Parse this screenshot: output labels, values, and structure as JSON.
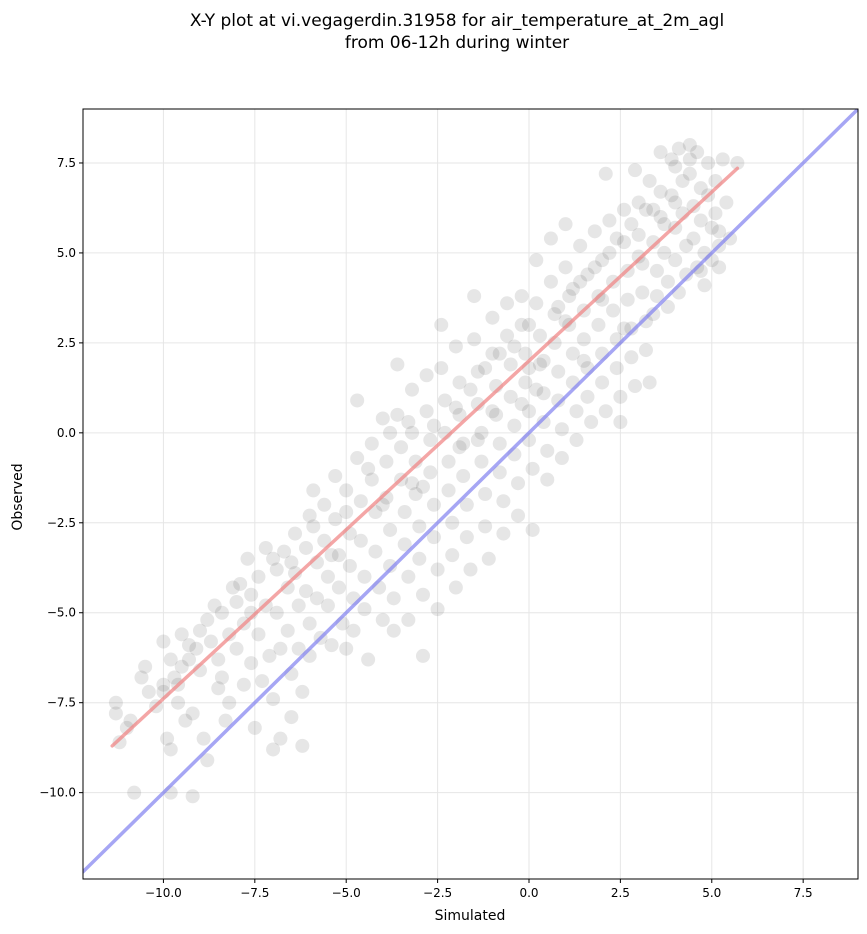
{
  "chart_data": {
    "type": "scatter",
    "title": [
      "X-Y plot at vi.vegagerdin.31958 for air_temperature_at_2m_agl",
      "from 06-12h during winter"
    ],
    "xlabel": "Simulated",
    "ylabel": "Observed",
    "xlim": [
      -12.2,
      9.0
    ],
    "ylim": [
      -12.4,
      9.0
    ],
    "xticks": [
      -10.0,
      -7.5,
      -5.0,
      -2.5,
      0.0,
      2.5,
      5.0,
      7.5
    ],
    "yticks": [
      -10.0,
      -7.5,
      -5.0,
      -2.5,
      0.0,
      2.5,
      5.0,
      7.5
    ],
    "xtick_labels": [
      "−10.0",
      "−7.5",
      "−5.0",
      "−2.5",
      "0.0",
      "2.5",
      "5.0",
      "7.5"
    ],
    "ytick_labels": [
      "−10.0",
      "−7.5",
      "−5.0",
      "−2.5",
      "0.0",
      "2.5",
      "5.0",
      "7.5"
    ],
    "grid": true,
    "point_color": "#333333",
    "point_opacity": 0.12,
    "points": [
      [
        -11.3,
        -7.5
      ],
      [
        -11.3,
        -7.8
      ],
      [
        -11.0,
        -8.2
      ],
      [
        -10.8,
        -10.0
      ],
      [
        -10.6,
        -6.8
      ],
      [
        -10.5,
        -6.5
      ],
      [
        -10.4,
        -7.2
      ],
      [
        -10.2,
        -7.6
      ],
      [
        -10.0,
        -5.8
      ],
      [
        -10.0,
        -7.0
      ],
      [
        -10.0,
        -7.2
      ],
      [
        -9.9,
        -8.5
      ],
      [
        -9.8,
        -6.3
      ],
      [
        -9.8,
        -8.8
      ],
      [
        -9.8,
        -10.0
      ],
      [
        -9.7,
        -6.8
      ],
      [
        -9.6,
        -7.5
      ],
      [
        -9.5,
        -5.6
      ],
      [
        -9.5,
        -6.5
      ],
      [
        -9.4,
        -8.0
      ],
      [
        -9.3,
        -5.9
      ],
      [
        -9.3,
        -6.3
      ],
      [
        -9.2,
        -7.8
      ],
      [
        -9.2,
        -10.1
      ],
      [
        -9.1,
        -6.0
      ],
      [
        -9.0,
        -5.5
      ],
      [
        -9.0,
        -6.6
      ],
      [
        -8.9,
        -8.5
      ],
      [
        -8.8,
        -9.1
      ],
      [
        -8.7,
        -5.8
      ],
      [
        -8.6,
        -4.8
      ],
      [
        -8.5,
        -6.3
      ],
      [
        -8.5,
        -7.1
      ],
      [
        -8.4,
        -5.0
      ],
      [
        -8.4,
        -6.8
      ],
      [
        -8.3,
        -8.0
      ],
      [
        -8.2,
        -5.6
      ],
      [
        -8.2,
        -7.5
      ],
      [
        -8.0,
        -4.7
      ],
      [
        -8.0,
        -6.0
      ],
      [
        -7.9,
        -4.2
      ],
      [
        -7.8,
        -5.3
      ],
      [
        -7.8,
        -7.0
      ],
      [
        -7.7,
        -3.5
      ],
      [
        -7.6,
        -4.5
      ],
      [
        -7.6,
        -6.4
      ],
      [
        -7.5,
        -8.2
      ],
      [
        -7.4,
        -4.0
      ],
      [
        -7.4,
        -5.6
      ],
      [
        -7.3,
        -6.9
      ],
      [
        -7.2,
        -3.2
      ],
      [
        -7.2,
        -4.8
      ],
      [
        -7.1,
        -6.2
      ],
      [
        -7.0,
        -7.4
      ],
      [
        -7.0,
        -8.8
      ],
      [
        -6.9,
        -3.8
      ],
      [
        -6.9,
        -5.0
      ],
      [
        -6.8,
        -6.0
      ],
      [
        -6.8,
        -8.5
      ],
      [
        -6.7,
        -3.3
      ],
      [
        -6.6,
        -4.3
      ],
      [
        -6.6,
        -5.5
      ],
      [
        -6.5,
        -6.7
      ],
      [
        -6.5,
        -7.9
      ],
      [
        -6.4,
        -2.8
      ],
      [
        -6.4,
        -3.9
      ],
      [
        -6.3,
        -4.8
      ],
      [
        -6.3,
        -6.0
      ],
      [
        -6.2,
        -7.2
      ],
      [
        -6.2,
        -8.7
      ],
      [
        -6.1,
        -3.2
      ],
      [
        -6.1,
        -4.4
      ],
      [
        -6.0,
        -5.3
      ],
      [
        -6.0,
        -6.2
      ],
      [
        -5.9,
        -1.6
      ],
      [
        -5.9,
        -2.6
      ],
      [
        -5.8,
        -3.6
      ],
      [
        -5.8,
        -4.6
      ],
      [
        -5.7,
        -5.7
      ],
      [
        -5.6,
        -2.0
      ],
      [
        -5.6,
        -3.0
      ],
      [
        -5.5,
        -4.0
      ],
      [
        -5.5,
        -4.8
      ],
      [
        -5.4,
        -5.9
      ],
      [
        -5.3,
        -1.2
      ],
      [
        -5.3,
        -2.4
      ],
      [
        -5.2,
        -3.4
      ],
      [
        -5.2,
        -4.3
      ],
      [
        -5.1,
        -5.3
      ],
      [
        -5.0,
        -6.0
      ],
      [
        -5.0,
        -1.6
      ],
      [
        -4.9,
        -2.8
      ],
      [
        -4.9,
        -3.7
      ],
      [
        -4.8,
        -4.6
      ],
      [
        -4.8,
        -5.5
      ],
      [
        -4.7,
        0.9
      ],
      [
        -4.7,
        -0.7
      ],
      [
        -4.6,
        -1.9
      ],
      [
        -4.6,
        -3.0
      ],
      [
        -4.5,
        -4.0
      ],
      [
        -4.5,
        -4.9
      ],
      [
        -4.4,
        -6.3
      ],
      [
        -4.3,
        -0.3
      ],
      [
        -4.3,
        -1.3
      ],
      [
        -4.2,
        -2.2
      ],
      [
        -4.2,
        -3.3
      ],
      [
        -4.1,
        -4.3
      ],
      [
        -4.0,
        -5.2
      ],
      [
        -4.0,
        0.4
      ],
      [
        -3.9,
        -0.8
      ],
      [
        -3.9,
        -1.8
      ],
      [
        -3.8,
        -2.7
      ],
      [
        -3.8,
        -3.7
      ],
      [
        -3.7,
        -4.6
      ],
      [
        -3.7,
        -5.5
      ],
      [
        -3.6,
        1.9
      ],
      [
        -3.6,
        0.5
      ],
      [
        -3.5,
        -0.4
      ],
      [
        -3.5,
        -1.3
      ],
      [
        -3.4,
        -2.2
      ],
      [
        -3.4,
        -3.1
      ],
      [
        -3.3,
        -4.0
      ],
      [
        -3.3,
        -5.2
      ],
      [
        -3.2,
        1.2
      ],
      [
        -3.2,
        0.0
      ],
      [
        -3.1,
        -0.8
      ],
      [
        -3.1,
        -1.7
      ],
      [
        -3.0,
        -2.6
      ],
      [
        -3.0,
        -3.5
      ],
      [
        -2.9,
        -4.5
      ],
      [
        -2.9,
        -6.2
      ],
      [
        -2.8,
        1.6
      ],
      [
        -2.8,
        0.6
      ],
      [
        -2.7,
        -0.2
      ],
      [
        -2.7,
        -1.1
      ],
      [
        -2.6,
        -2.0
      ],
      [
        -2.6,
        -2.9
      ],
      [
        -2.5,
        -3.8
      ],
      [
        -2.5,
        -4.9
      ],
      [
        -2.4,
        3.0
      ],
      [
        -2.4,
        1.8
      ],
      [
        -2.3,
        0.9
      ],
      [
        -2.3,
        0.0
      ],
      [
        -2.2,
        -0.8
      ],
      [
        -2.2,
        -1.6
      ],
      [
        -2.1,
        -2.5
      ],
      [
        -2.1,
        -3.4
      ],
      [
        -2.0,
        -4.3
      ],
      [
        -2.0,
        2.4
      ],
      [
        -1.9,
        1.4
      ],
      [
        -1.9,
        0.5
      ],
      [
        -1.8,
        -0.3
      ],
      [
        -1.8,
        -1.2
      ],
      [
        -1.7,
        -2.0
      ],
      [
        -1.7,
        -2.9
      ],
      [
        -1.6,
        -3.8
      ],
      [
        -1.5,
        3.8
      ],
      [
        -1.5,
        2.6
      ],
      [
        -1.4,
        1.7
      ],
      [
        -1.4,
        0.8
      ],
      [
        -1.3,
        0.0
      ],
      [
        -1.3,
        -0.8
      ],
      [
        -1.2,
        -1.7
      ],
      [
        -1.2,
        -2.6
      ],
      [
        -1.1,
        -3.5
      ],
      [
        -1.0,
        3.2
      ],
      [
        -1.0,
        2.2
      ],
      [
        -0.9,
        1.3
      ],
      [
        -0.9,
        0.5
      ],
      [
        -0.8,
        -0.3
      ],
      [
        -0.8,
        -1.1
      ],
      [
        -0.7,
        -1.9
      ],
      [
        -0.7,
        -2.8
      ],
      [
        -0.6,
        3.6
      ],
      [
        -0.6,
        2.7
      ],
      [
        -0.5,
        1.9
      ],
      [
        -0.5,
        1.0
      ],
      [
        -0.4,
        0.2
      ],
      [
        -0.4,
        -0.6
      ],
      [
        -0.3,
        -1.4
      ],
      [
        -0.3,
        -2.3
      ],
      [
        -0.2,
        3.8
      ],
      [
        -0.2,
        3.0
      ],
      [
        -0.1,
        2.2
      ],
      [
        -0.1,
        1.4
      ],
      [
        0.0,
        0.6
      ],
      [
        0.0,
        -0.2
      ],
      [
        0.1,
        -1.0
      ],
      [
        0.1,
        -2.7
      ],
      [
        0.2,
        4.8
      ],
      [
        0.2,
        3.6
      ],
      [
        0.3,
        2.7
      ],
      [
        0.3,
        1.9
      ],
      [
        0.4,
        1.1
      ],
      [
        0.4,
        0.3
      ],
      [
        0.5,
        -0.5
      ],
      [
        0.5,
        -1.3
      ],
      [
        0.6,
        5.4
      ],
      [
        0.6,
        4.2
      ],
      [
        0.7,
        3.3
      ],
      [
        0.7,
        2.5
      ],
      [
        0.8,
        1.7
      ],
      [
        0.8,
        0.9
      ],
      [
        0.9,
        0.1
      ],
      [
        0.9,
        -0.7
      ],
      [
        1.0,
        5.8
      ],
      [
        1.0,
        4.6
      ],
      [
        1.1,
        3.8
      ],
      [
        1.1,
        3.0
      ],
      [
        1.2,
        2.2
      ],
      [
        1.2,
        1.4
      ],
      [
        1.3,
        0.6
      ],
      [
        1.3,
        -0.2
      ],
      [
        1.4,
        5.2
      ],
      [
        1.4,
        4.2
      ],
      [
        1.5,
        3.4
      ],
      [
        1.5,
        2.6
      ],
      [
        1.6,
        1.8
      ],
      [
        1.6,
        1.0
      ],
      [
        1.7,
        0.3
      ],
      [
        1.8,
        5.6
      ],
      [
        1.8,
        4.6
      ],
      [
        1.9,
        3.8
      ],
      [
        1.9,
        3.0
      ],
      [
        2.0,
        2.2
      ],
      [
        2.0,
        1.4
      ],
      [
        2.1,
        0.6
      ],
      [
        2.1,
        7.2
      ],
      [
        2.2,
        5.9
      ],
      [
        2.2,
        5.0
      ],
      [
        2.3,
        4.2
      ],
      [
        2.3,
        3.4
      ],
      [
        2.4,
        2.6
      ],
      [
        2.4,
        1.8
      ],
      [
        2.5,
        1.0
      ],
      [
        2.5,
        0.3
      ],
      [
        2.6,
        6.2
      ],
      [
        2.6,
        5.3
      ],
      [
        2.7,
        4.5
      ],
      [
        2.7,
        3.7
      ],
      [
        2.8,
        2.9
      ],
      [
        2.8,
        2.1
      ],
      [
        2.9,
        1.3
      ],
      [
        2.9,
        7.3
      ],
      [
        3.0,
        6.4
      ],
      [
        3.0,
        5.5
      ],
      [
        3.1,
        4.7
      ],
      [
        3.1,
        3.9
      ],
      [
        3.2,
        3.1
      ],
      [
        3.2,
        2.3
      ],
      [
        3.3,
        1.4
      ],
      [
        3.3,
        7.0
      ],
      [
        3.4,
        6.2
      ],
      [
        3.4,
        5.3
      ],
      [
        3.5,
        4.5
      ],
      [
        3.5,
        3.8
      ],
      [
        3.6,
        7.8
      ],
      [
        3.6,
        6.7
      ],
      [
        3.7,
        5.8
      ],
      [
        3.7,
        5.0
      ],
      [
        3.8,
        4.2
      ],
      [
        3.8,
        3.5
      ],
      [
        3.9,
        7.6
      ],
      [
        3.9,
        6.6
      ],
      [
        4.0,
        5.7
      ],
      [
        4.0,
        4.8
      ],
      [
        4.1,
        3.9
      ],
      [
        4.1,
        7.9
      ],
      [
        4.2,
        7.0
      ],
      [
        4.2,
        6.1
      ],
      [
        4.3,
        5.2
      ],
      [
        4.3,
        4.4
      ],
      [
        4.4,
        8.0
      ],
      [
        4.4,
        7.2
      ],
      [
        4.5,
        6.3
      ],
      [
        4.5,
        5.4
      ],
      [
        4.6,
        4.6
      ],
      [
        4.6,
        7.8
      ],
      [
        4.7,
        6.8
      ],
      [
        4.7,
        5.9
      ],
      [
        4.8,
        5.0
      ],
      [
        4.8,
        4.1
      ],
      [
        4.9,
        7.5
      ],
      [
        4.9,
        6.6
      ],
      [
        5.0,
        5.7
      ],
      [
        5.0,
        4.8
      ],
      [
        5.1,
        7.0
      ],
      [
        5.1,
        6.1
      ],
      [
        5.2,
        5.2
      ],
      [
        5.2,
        4.6
      ],
      [
        5.3,
        7.6
      ],
      [
        5.4,
        6.4
      ],
      [
        5.5,
        5.4
      ],
      [
        5.7,
        7.5
      ],
      [
        -11.2,
        -8.6
      ],
      [
        -10.9,
        -8.0
      ],
      [
        -8.8,
        -5.2
      ],
      [
        -8.1,
        -4.3
      ],
      [
        -7.0,
        -3.5
      ],
      [
        -6.0,
        -2.3
      ],
      [
        -5.0,
        -2.2
      ],
      [
        -4.4,
        -1.0
      ],
      [
        -3.8,
        0.0
      ],
      [
        -3.2,
        -1.4
      ],
      [
        -2.6,
        0.2
      ],
      [
        -2.0,
        0.7
      ],
      [
        -1.6,
        1.2
      ],
      [
        -1.2,
        1.8
      ],
      [
        -0.8,
        2.2
      ],
      [
        -0.4,
        2.4
      ],
      [
        0.0,
        3.0
      ],
      [
        0.4,
        2.0
      ],
      [
        0.8,
        3.5
      ],
      [
        1.2,
        4.0
      ],
      [
        1.6,
        4.4
      ],
      [
        2.0,
        4.8
      ],
      [
        2.4,
        5.4
      ],
      [
        2.8,
        5.8
      ],
      [
        3.2,
        6.2
      ],
      [
        3.6,
        6.0
      ],
      [
        4.0,
        7.4
      ],
      [
        4.4,
        7.6
      ],
      [
        -6.5,
        -3.6
      ],
      [
        -5.4,
        -3.4
      ],
      [
        -4.0,
        -2.0
      ],
      [
        -2.9,
        -1.5
      ],
      [
        -1.9,
        -0.4
      ],
      [
        -1.0,
        0.6
      ],
      [
        0.0,
        1.8
      ],
      [
        1.0,
        3.1
      ],
      [
        2.0,
        3.7
      ],
      [
        3.0,
        4.9
      ],
      [
        4.0,
        6.4
      ],
      [
        -9.6,
        -7.0
      ],
      [
        -7.6,
        -5.0
      ],
      [
        -3.3,
        0.3
      ],
      [
        0.2,
        1.2
      ],
      [
        1.5,
        2.0
      ],
      [
        2.6,
        2.9
      ],
      [
        3.4,
        3.3
      ],
      [
        4.7,
        4.5
      ],
      [
        5.2,
        5.6
      ],
      [
        -1.4,
        -0.2
      ],
      [
        -0.2,
        0.8
      ]
    ],
    "series": [
      {
        "kind": "fit",
        "color": "#f08080",
        "points": [
          [
            -11.4,
            -8.7
          ],
          [
            5.7,
            7.35
          ]
        ]
      },
      {
        "kind": "identity",
        "color": "#8080f0",
        "points": [
          [
            -12.2,
            -12.2
          ],
          [
            9.0,
            9.0
          ]
        ]
      }
    ]
  }
}
